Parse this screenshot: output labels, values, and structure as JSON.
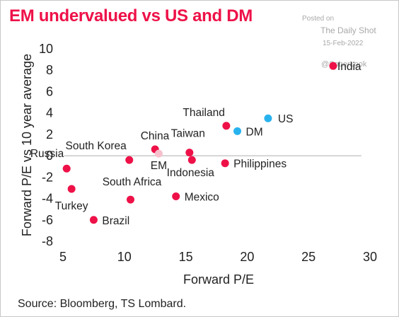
{
  "title": "EM undervalued vs US and DM",
  "watermark": {
    "posted": "Posted on",
    "brand": "The Daily Shot",
    "date": "15-Feb-2022",
    "handle": "@SoberLook"
  },
  "source": "Source: Bloomberg, TS Lombard.",
  "colors": {
    "em": "#ee1148",
    "developed": "#29b3ee",
    "em_aggregate": "#f6c0cc",
    "zero_line": "#bdbdbd"
  },
  "chart_data": {
    "type": "scatter",
    "xlabel": "Forward P/E",
    "ylabel": "Forward P/E vs 10 year average",
    "xlim": [
      4.5,
      30
    ],
    "ylim": [
      -8.5,
      10.8
    ],
    "xticks": [
      5,
      10,
      15,
      20,
      25,
      30
    ],
    "yticks": [
      10,
      8,
      6,
      4,
      2,
      0,
      -2,
      -4,
      -6,
      -8
    ],
    "grid": false,
    "zero_line": true,
    "points": [
      {
        "label": "India",
        "x": 27.0,
        "y": 8.4,
        "group": "em"
      },
      {
        "label": "Thailand",
        "x": 18.3,
        "y": 2.8,
        "group": "em"
      },
      {
        "label": "US",
        "x": 21.7,
        "y": 3.5,
        "group": "developed"
      },
      {
        "label": "DM",
        "x": 19.2,
        "y": 2.3,
        "group": "developed"
      },
      {
        "label": "China",
        "x": 12.5,
        "y": 0.6,
        "group": "em"
      },
      {
        "label": "Taiwan",
        "x": 15.3,
        "y": 0.3,
        "group": "em"
      },
      {
        "label": "South Korea",
        "x": 10.4,
        "y": -0.4,
        "group": "em"
      },
      {
        "label": "EM",
        "x": 12.8,
        "y": 0.2,
        "group": "em_aggregate"
      },
      {
        "label": "Indonesia",
        "x": 15.5,
        "y": -0.4,
        "group": "em"
      },
      {
        "label": "Philippines",
        "x": 18.2,
        "y": -0.7,
        "group": "em"
      },
      {
        "label": "Russia",
        "x": 5.3,
        "y": -1.2,
        "group": "em"
      },
      {
        "label": "Turkey",
        "x": 5.7,
        "y": -3.1,
        "group": "em"
      },
      {
        "label": "South Africa",
        "x": 10.5,
        "y": -4.1,
        "group": "em"
      },
      {
        "label": "Mexico",
        "x": 14.2,
        "y": -3.8,
        "group": "em"
      },
      {
        "label": "Brazil",
        "x": 7.5,
        "y": -6.0,
        "group": "em"
      }
    ]
  }
}
